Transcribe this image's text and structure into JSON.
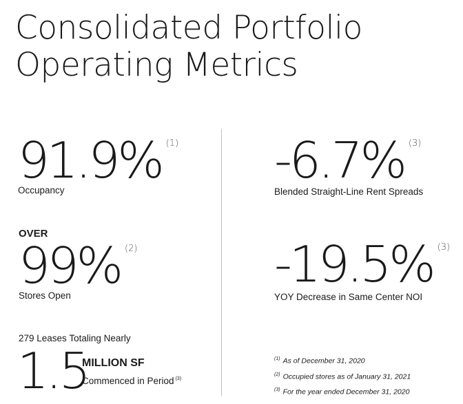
{
  "title": {
    "line1": "Consolidated Portfolio",
    "line2": "Operating Metrics"
  },
  "metrics": {
    "occupancy": {
      "value": "91.9%",
      "footnote": "(1)",
      "label": "Occupancy"
    },
    "stores_open": {
      "prefix": "OVER",
      "value": "99%",
      "footnote": "(2)",
      "label": "Stores Open"
    },
    "leases": {
      "intro": "279 Leases Totaling Nearly",
      "value": "1.5",
      "unit": "MILLION SF",
      "label": "Commenced in Period",
      "footnote": "(3)"
    },
    "rent_spreads": {
      "value": "-6.7%",
      "footnote": "(3)",
      "label": "Blended Straight-Line Rent Spreads"
    },
    "same_center_noi": {
      "value": "-19.5%",
      "footnote": "(3)",
      "label": "YOY Decrease in Same Center NOI"
    }
  },
  "footnotes": [
    {
      "mark": "(1)",
      "text": "As of December 31, 2020"
    },
    {
      "mark": "(2)",
      "text": "Occupied stores as of January 31, 2021"
    },
    {
      "mark": "(3)",
      "text": "For the year ended December 31, 2020"
    }
  ]
}
